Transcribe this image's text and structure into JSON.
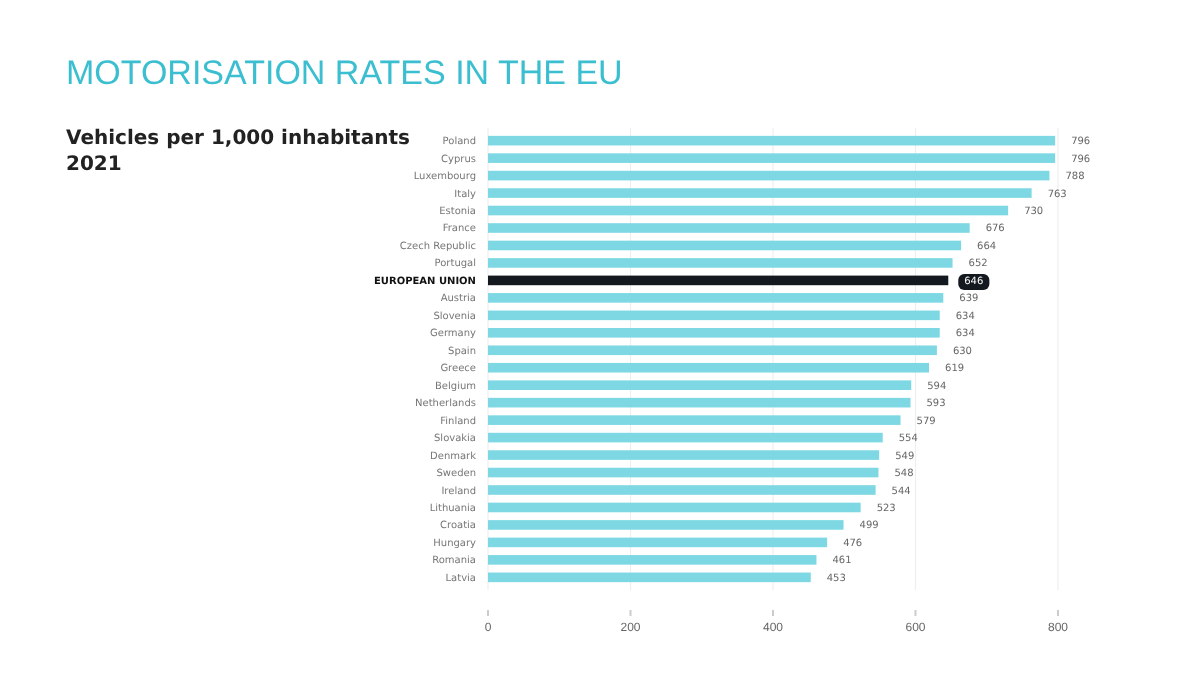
{
  "chart_data": {
    "type": "bar",
    "orientation": "horizontal",
    "title": "MOTORISATION RATES IN THE EU",
    "subtitle": "Vehicles per 1,000 inhabitants\n2021",
    "categories": [
      "Poland",
      "Cyprus",
      "Luxembourg",
      "Italy",
      "Estonia",
      "France",
      "Czech Republic",
      "Portugal",
      "EUROPEAN UNION",
      "Austria",
      "Slovenia",
      "Germany",
      "Spain",
      "Greece",
      "Belgium",
      "Netherlands",
      "Finland",
      "Slovakia",
      "Denmark",
      "Sweden",
      "Ireland",
      "Lithuania",
      "Croatia",
      "Hungary",
      "Romania",
      "Latvia"
    ],
    "values": [
      796,
      796,
      788,
      763,
      730,
      676,
      664,
      652,
      646,
      639,
      634,
      634,
      630,
      619,
      594,
      593,
      579,
      554,
      549,
      548,
      544,
      523,
      499,
      476,
      461,
      453
    ],
    "colors": [
      "#7dd8e4",
      "#7dd8e4",
      "#7dd8e4",
      "#7dd8e4",
      "#7dd8e4",
      "#7dd8e4",
      "#7dd8e4",
      "#7dd8e4",
      "#14181f",
      "#7dd8e4",
      "#7dd8e4",
      "#7dd8e4",
      "#7dd8e4",
      "#7dd8e4",
      "#7dd8e4",
      "#7dd8e4",
      "#7dd8e4",
      "#7dd8e4",
      "#7dd8e4",
      "#7dd8e4",
      "#7dd8e4",
      "#7dd8e4",
      "#7dd8e4",
      "#7dd8e4",
      "#7dd8e4",
      "#7dd8e4"
    ],
    "xlim": [
      0,
      800
    ],
    "xticks": [
      0,
      200,
      400,
      600,
      800
    ],
    "grid": "x",
    "data_labels": true
  }
}
